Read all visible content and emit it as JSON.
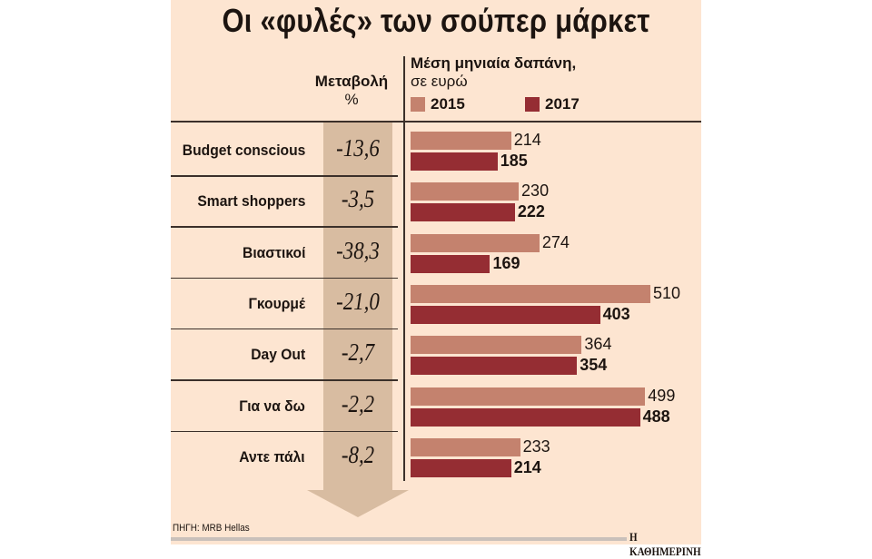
{
  "title": "Οι «φυλές» των σούπερ μάρκετ",
  "headers": {
    "change": "Μεταβολή",
    "change_unit": "%",
    "spend": "Μέση μηνιαία δαπάνη,",
    "spend_unit": "σε ευρώ"
  },
  "colors": {
    "2015": "#c4826e",
    "2017": "#952d33",
    "arrow": "#d8bca1",
    "background": "#fde5d1"
  },
  "chart_data": {
    "type": "bar",
    "orientation": "horizontal",
    "categories": [
      "Budget conscious",
      "Smart shoppers",
      "Βιαστικοί",
      "Γκουρμέ",
      "Day Out",
      "Για να δω",
      "Αντε πάλι"
    ],
    "series": [
      {
        "name": "2015",
        "values": [
          214,
          230,
          274,
          510,
          364,
          499,
          233
        ]
      },
      {
        "name": "2017",
        "values": [
          185,
          222,
          169,
          403,
          354,
          488,
          214
        ]
      }
    ],
    "change_pct": [
      "-13,6",
      "-3,5",
      "-38,3",
      "-21,0",
      "-2,7",
      "-2,2",
      "-8,2"
    ],
    "legend_placement": "top",
    "grid": false
  },
  "footer": {
    "source": "ΠΗΓΗ: MRB Hellas",
    "brand": "Η ΚΑΘΗΜΕΡΙΝΗ"
  }
}
